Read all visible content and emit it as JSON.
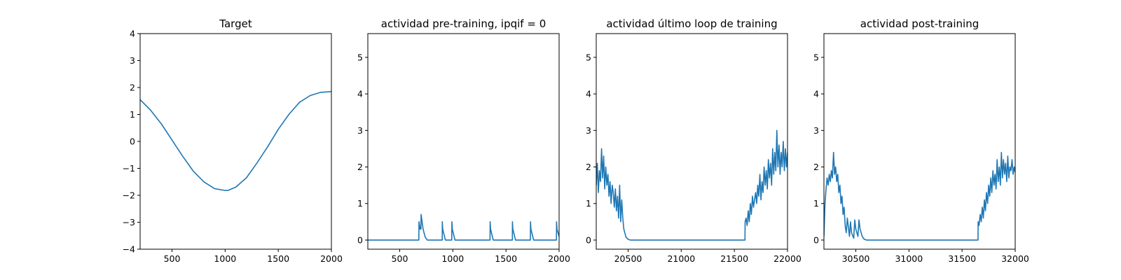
{
  "chart_data": [
    {
      "type": "line",
      "title": "Target",
      "xlabel": "",
      "ylabel": "",
      "xlim": [
        200,
        2000
      ],
      "ylim": [
        -4,
        4
      ],
      "xticks": [
        500,
        1000,
        1500,
        2000
      ],
      "yticks": [
        -4,
        -3,
        -2,
        -1,
        0,
        1,
        2,
        3,
        4
      ],
      "color": "#1f77b4",
      "series": [
        {
          "x": [
            200,
            300,
            400,
            500,
            600,
            700,
            800,
            900,
            1000,
            1025,
            1100,
            1200,
            1300,
            1400,
            1500,
            1600,
            1700,
            1800,
            1900,
            2000
          ],
          "y": [
            1.55,
            1.15,
            0.65,
            0.05,
            -0.55,
            -1.1,
            -1.5,
            -1.75,
            -1.82,
            -1.82,
            -1.7,
            -1.35,
            -0.8,
            -0.2,
            0.45,
            1.0,
            1.45,
            1.7,
            1.82,
            1.85
          ]
        }
      ]
    },
    {
      "type": "line",
      "title": "actividad pre-training, ipqif = 0",
      "xlabel": "",
      "ylabel": "",
      "xlim": [
        200,
        2000
      ],
      "ylim": [
        -0.25,
        5.65
      ],
      "xticks": [
        500,
        1000,
        1500,
        2000
      ],
      "yticks": [
        0,
        1,
        2,
        3,
        4,
        5
      ],
      "color": "#1f77b4",
      "series": [
        {
          "x": [
            200,
            680,
            681,
            690,
            692,
            700,
            701,
            720,
            740,
            760,
            900,
            901,
            905,
            930,
            990,
            991,
            995,
            1020,
            1350,
            1351,
            1355,
            1380,
            1560,
            1561,
            1565,
            1590,
            1730,
            1731,
            1735,
            1760,
            1975,
            1976,
            1980,
            2000
          ],
          "y": [
            0,
            0,
            0.5,
            0.35,
            0.3,
            0.3,
            0.7,
            0.3,
            0.08,
            0,
            0,
            0.5,
            0.3,
            0,
            0,
            0.5,
            0.3,
            0,
            0,
            0.5,
            0.3,
            0,
            0,
            0.5,
            0.3,
            0,
            0,
            0.5,
            0.3,
            0,
            0,
            0.5,
            0.3,
            0.1
          ]
        }
      ]
    },
    {
      "type": "line",
      "title": "actividad último loop de training",
      "xlabel": "",
      "ylabel": "",
      "xlim": [
        20200,
        22000
      ],
      "ylim": [
        -0.25,
        5.65
      ],
      "xticks": [
        20500,
        21000,
        21500,
        22000
      ],
      "yticks": [
        0,
        1,
        2,
        3,
        4,
        5
      ],
      "color": "#1f77b4",
      "series": [
        {
          "x": [
            20200,
            20210,
            20220,
            20230,
            20240,
            20250,
            20260,
            20270,
            20280,
            20290,
            20300,
            20310,
            20320,
            20330,
            20340,
            20350,
            20360,
            20370,
            20380,
            20390,
            20400,
            20410,
            20420,
            20430,
            20440,
            20450,
            20460,
            20480,
            20500,
            20520,
            21600,
            21601,
            21610,
            21620,
            21630,
            21640,
            21650,
            21660,
            21670,
            21680,
            21690,
            21700,
            21710,
            21720,
            21730,
            21740,
            21750,
            21760,
            21770,
            21780,
            21790,
            21800,
            21810,
            21820,
            21830,
            21840,
            21850,
            21860,
            21870,
            21880,
            21890,
            21900,
            21910,
            21920,
            21930,
            21940,
            21950,
            21960,
            21970,
            21980,
            21990,
            22000
          ],
          "y": [
            1.5,
            2.1,
            1.3,
            1.9,
            1.6,
            2.5,
            1.7,
            2.3,
            1.4,
            2.0,
            1.5,
            1.8,
            1.2,
            1.6,
            1.0,
            1.5,
            1.3,
            0.9,
            1.4,
            0.8,
            1.2,
            0.6,
            1.5,
            0.5,
            1.1,
            0.6,
            0.3,
            0.08,
            0.02,
            0,
            0,
            0.5,
            0.6,
            0.4,
            0.8,
            0.5,
            1.0,
            0.7,
            1.2,
            0.9,
            1.1,
            1.3,
            1.0,
            1.5,
            1.2,
            1.8,
            1.1,
            1.6,
            1.3,
            2.0,
            1.5,
            1.9,
            1.4,
            2.2,
            1.7,
            2.1,
            1.5,
            2.5,
            1.8,
            2.4,
            1.9,
            3.0,
            2.0,
            2.6,
            1.8,
            2.4,
            2.0,
            2.7,
            1.9,
            2.5,
            2.0,
            2.4
          ]
        }
      ]
    },
    {
      "type": "line",
      "title": "actividad post-training",
      "xlabel": "",
      "ylabel": "",
      "xlim": [
        30200,
        32000
      ],
      "ylim": [
        -0.25,
        5.65
      ],
      "xticks": [
        30500,
        31000,
        31500,
        32000
      ],
      "yticks": [
        0,
        1,
        2,
        3,
        4,
        5
      ],
      "color": "#1f77b4",
      "series": [
        {
          "x": [
            30200,
            30210,
            30220,
            30230,
            30240,
            30250,
            30260,
            30270,
            30280,
            30290,
            30300,
            30310,
            30320,
            30330,
            30340,
            30350,
            30360,
            30370,
            30380,
            30390,
            30400,
            30410,
            30420,
            30440,
            30450,
            30460,
            30480,
            30490,
            30500,
            30520,
            30530,
            30540,
            30560,
            30580,
            30600,
            31650,
            31651,
            31660,
            31670,
            31680,
            31690,
            31700,
            31710,
            31720,
            31730,
            31740,
            31750,
            31760,
            31770,
            31780,
            31790,
            31800,
            31810,
            31820,
            31830,
            31840,
            31850,
            31860,
            31870,
            31880,
            31890,
            31900,
            31910,
            31920,
            31930,
            31940,
            31950,
            31960,
            31970,
            31980,
            31990,
            32000
          ],
          "y": [
            0.1,
            1.0,
            1.4,
            1.7,
            1.5,
            1.8,
            1.6,
            1.9,
            1.7,
            2.4,
            1.8,
            2.0,
            1.6,
            1.8,
            1.3,
            1.5,
            1.0,
            1.2,
            0.7,
            0.9,
            0.4,
            0.2,
            0.6,
            0.1,
            0.5,
            0.2,
            0.05,
            0.55,
            0.3,
            0.1,
            0.55,
            0.3,
            0.1,
            0.02,
            0,
            0,
            0.5,
            0.4,
            0.7,
            0.5,
            0.9,
            0.6,
            1.1,
            0.8,
            1.3,
            1.0,
            1.5,
            1.2,
            1.7,
            1.3,
            1.9,
            1.5,
            1.8,
            1.4,
            2.2,
            1.6,
            2.0,
            1.5,
            2.4,
            1.7,
            2.2,
            1.8,
            2.1,
            1.6,
            2.3,
            1.7,
            2.0,
            1.9,
            2.2,
            1.8,
            2.0,
            1.85
          ]
        }
      ]
    }
  ]
}
